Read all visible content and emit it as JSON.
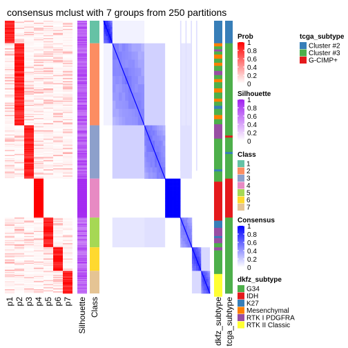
{
  "chart_data": {
    "type": "heatmap",
    "title": "consensus mclust with 7 groups from 250 partitions",
    "columns": [
      "p1",
      "p2",
      "p3",
      "p4",
      "p5",
      "p6",
      "p7",
      "Silhouette",
      "Class"
    ],
    "right_columns": [
      "dkfz_subtype",
      "tcga_subtype"
    ],
    "class_sizes": [
      22,
      80,
      52,
      38,
      29,
      23,
      22
    ],
    "prob_legend": {
      "title": "Prob",
      "ticks": [
        "1",
        "0.8",
        "0.6",
        "0.4",
        "0.2",
        "0"
      ],
      "high": "#ff0000",
      "low": "#ffffff"
    },
    "silhouette_legend": {
      "title": "Silhouette",
      "ticks": [
        "1",
        "0.8",
        "0.6",
        "0.4",
        "0.2",
        "0"
      ],
      "high": "#a020f0",
      "low": "#ffffff"
    },
    "class_legend": {
      "title": "Class",
      "labels": [
        "1",
        "2",
        "3",
        "4",
        "5",
        "6",
        "7"
      ],
      "colors": [
        "#66c2a5",
        "#fc8d62",
        "#8da0cb",
        "#e78ac3",
        "#a6d854",
        "#ffd92f",
        "#e5c494"
      ]
    },
    "consensus_legend": {
      "title": "Consensus",
      "ticks": [
        "1",
        "0.8",
        "0.6",
        "0.4",
        "0.2",
        "0"
      ],
      "high": "#0000ff",
      "low": "#ffffff"
    },
    "dkfz_legend": {
      "title": "dkfz_subtype",
      "labels": [
        "G34",
        "IDH",
        "K27",
        "Mesenchymal",
        "RTK I PDGFRA",
        "RTK II Classic"
      ],
      "colors": [
        "#4daf4a",
        "#e41a1c",
        "#377eb8",
        "#ff7f00",
        "#984ea3",
        "#ffff33"
      ]
    },
    "tcga_legend": {
      "title": "tcga_subtype",
      "labels": [
        "Cluster #2",
        "Cluster #3",
        "G-CIMP+"
      ],
      "colors": [
        "#377eb8",
        "#4daf4a",
        "#e41a1c"
      ]
    }
  }
}
